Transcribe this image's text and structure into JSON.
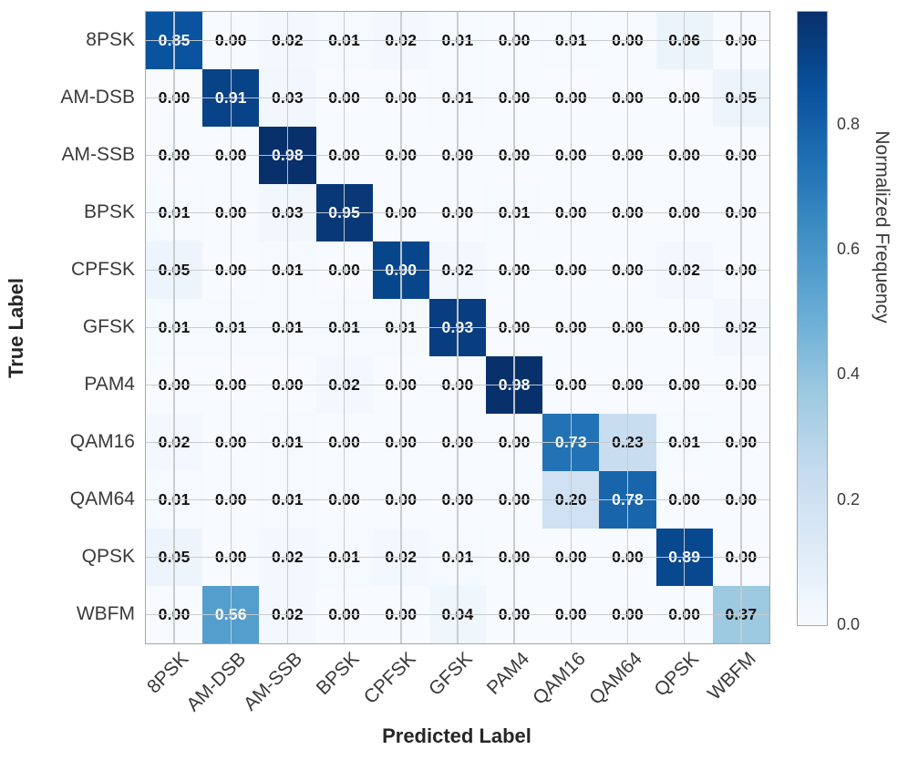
{
  "chart_data": {
    "type": "heatmap",
    "title": "",
    "xlabel": "Predicted Label",
    "ylabel": "True Label",
    "x_categories": [
      "8PSK",
      "AM-DSB",
      "AM-SSB",
      "BPSK",
      "CPFSK",
      "GFSK",
      "PAM4",
      "QAM16",
      "QAM64",
      "QPSK",
      "WBFM"
    ],
    "y_categories": [
      "8PSK",
      "AM-DSB",
      "AM-SSB",
      "BPSK",
      "CPFSK",
      "GFSK",
      "PAM4",
      "QAM16",
      "QAM64",
      "QPSK",
      "WBFM"
    ],
    "values": [
      [
        0.85,
        0.0,
        0.02,
        0.01,
        0.02,
        0.01,
        0.0,
        0.01,
        0.0,
        0.06,
        0.0
      ],
      [
        0.0,
        0.91,
        0.03,
        0.0,
        0.0,
        0.01,
        0.0,
        0.0,
        0.0,
        0.0,
        0.05
      ],
      [
        0.0,
        0.0,
        0.98,
        0.0,
        0.0,
        0.0,
        0.0,
        0.0,
        0.0,
        0.0,
        0.0
      ],
      [
        0.01,
        0.0,
        0.03,
        0.95,
        0.0,
        0.0,
        0.01,
        0.0,
        0.0,
        0.0,
        0.0
      ],
      [
        0.05,
        0.0,
        0.01,
        0.0,
        0.9,
        0.02,
        0.0,
        0.0,
        0.0,
        0.02,
        0.0
      ],
      [
        0.01,
        0.01,
        0.01,
        0.01,
        0.01,
        0.93,
        0.0,
        0.0,
        0.0,
        0.0,
        0.02
      ],
      [
        0.0,
        0.0,
        0.0,
        0.02,
        0.0,
        0.0,
        0.98,
        0.0,
        0.0,
        0.0,
        0.0
      ],
      [
        0.02,
        0.0,
        0.01,
        0.0,
        0.0,
        0.0,
        0.0,
        0.73,
        0.23,
        0.01,
        0.0
      ],
      [
        0.01,
        0.0,
        0.01,
        0.0,
        0.0,
        0.0,
        0.0,
        0.2,
        0.78,
        0.0,
        0.0
      ],
      [
        0.05,
        0.0,
        0.02,
        0.01,
        0.02,
        0.01,
        0.0,
        0.0,
        0.0,
        0.89,
        0.0
      ],
      [
        0.0,
        0.56,
        0.02,
        0.0,
        0.0,
        0.04,
        0.0,
        0.0,
        0.0,
        0.0,
        0.37
      ]
    ],
    "value_decimals": 2,
    "grid": true,
    "colormap": "Blues",
    "colormap_anchors": [
      [
        0.0,
        "#f7fbff"
      ],
      [
        0.125,
        "#deebf7"
      ],
      [
        0.25,
        "#c6dbef"
      ],
      [
        0.375,
        "#9ecae1"
      ],
      [
        0.5,
        "#6baed6"
      ],
      [
        0.625,
        "#4292c6"
      ],
      [
        0.75,
        "#2171b5"
      ],
      [
        0.875,
        "#08519c"
      ],
      [
        1.0,
        "#08306b"
      ]
    ],
    "colorbar": {
      "label": "Normalized Frequency",
      "ticks": [
        0.8,
        0.6,
        0.4,
        0.2,
        0.0
      ],
      "tick_decimals": 1,
      "vmin": 0.0,
      "vmax": 0.98,
      "position": "right"
    },
    "colors": {
      "background": "#ffffff",
      "gridline": "#c6cace",
      "spine": "#a6a6a6",
      "cell_text_dark": "#111111",
      "cell_text_light": "#ffffff",
      "tick_label": "#3a3a3a",
      "axis_label": "#262626"
    }
  }
}
